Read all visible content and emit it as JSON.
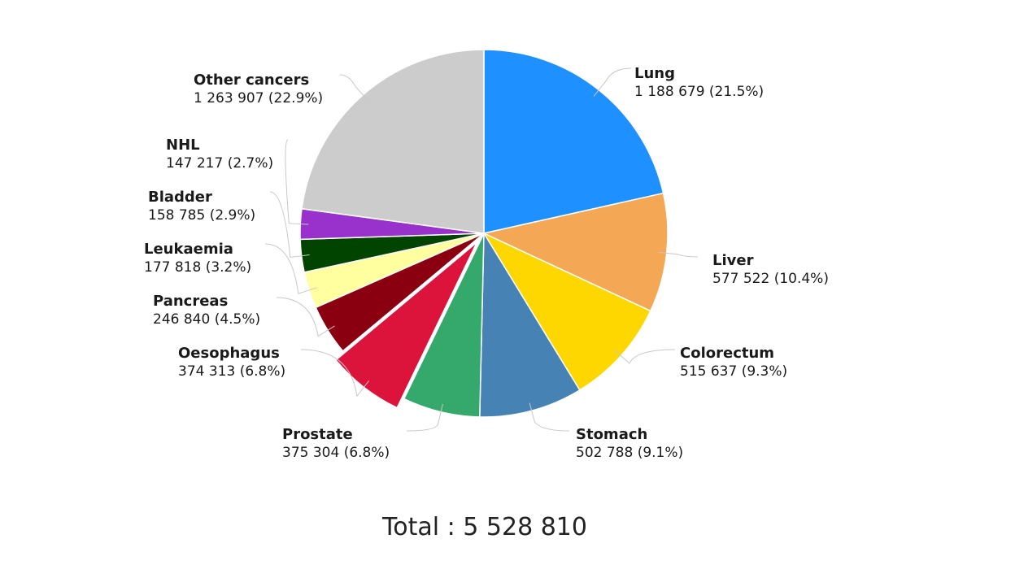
{
  "chart_data": {
    "type": "pie",
    "total_label": "Total : 5 528 810",
    "slices": [
      {
        "name": "Lung",
        "value": 1188679,
        "value_text": "1 188 679 (21.5%)",
        "color": "#1e90ff",
        "exploded": false
      },
      {
        "name": "Liver",
        "value": 577522,
        "value_text": "577 522 (10.4%)",
        "color": "#f4a856",
        "exploded": false
      },
      {
        "name": "Colorectum",
        "value": 515637,
        "value_text": "515 637 (9.3%)",
        "color": "#ffd700",
        "exploded": false
      },
      {
        "name": "Stomach",
        "value": 502788,
        "value_text": "502 788 (9.1%)",
        "color": "#4682b4",
        "exploded": false
      },
      {
        "name": "Prostate",
        "value": 375304,
        "value_text": "375 304 (6.8%)",
        "color": "#35a86c",
        "exploded": false
      },
      {
        "name": "Oesophagus",
        "value": 374313,
        "value_text": "374 313 (6.8%)",
        "color": "#dc143c",
        "exploded": true
      },
      {
        "name": "Pancreas",
        "value": 246840,
        "value_text": "246 840 (4.5%)",
        "color": "#8b0010",
        "exploded": false
      },
      {
        "name": "Leukaemia",
        "value": 177818,
        "value_text": "177 818 (3.2%)",
        "color": "#ffffa0",
        "exploded": false
      },
      {
        "name": "Bladder",
        "value": 158785,
        "value_text": "158 785 (2.9%)",
        "color": "#004400",
        "exploded": false
      },
      {
        "name": "NHL",
        "value": 147217,
        "value_text": "147 217 (2.7%)",
        "color": "#9932cc",
        "exploded": false
      },
      {
        "name": "Other cancers",
        "value": 1263907,
        "value_text": "1 263 907 (22.9%)",
        "color": "#cccccc",
        "exploded": false
      }
    ]
  }
}
